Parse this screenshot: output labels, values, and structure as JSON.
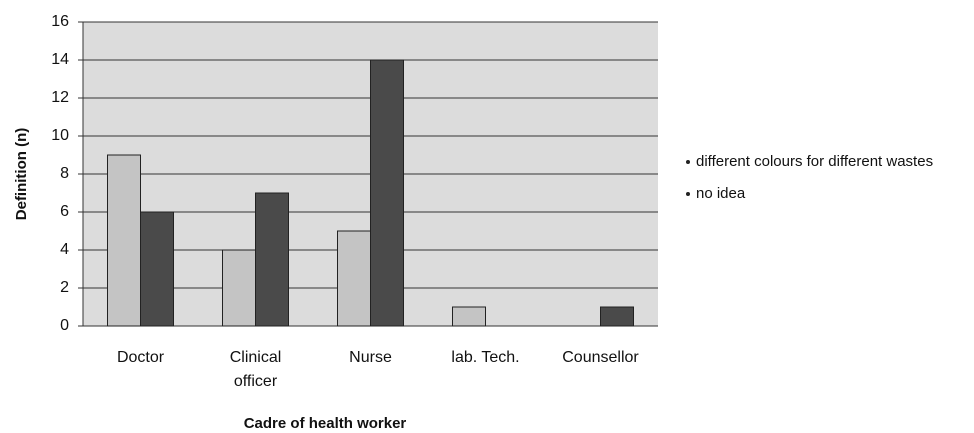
{
  "chart_data": {
    "type": "bar",
    "x_label": "Cadre of health worker",
    "y_label": "Definition (n)",
    "categories": [
      "Doctor",
      "Clinical officer",
      "Nurse",
      "lab. Tech.",
      "Counsellor"
    ],
    "series": [
      {
        "name": "different colours for different wastes",
        "color": "#c4c4c4",
        "values": [
          9,
          4,
          5,
          1,
          0
        ]
      },
      {
        "name": "no idea",
        "color": "#4a4a4a",
        "values": [
          6,
          7,
          14,
          0,
          1
        ]
      }
    ],
    "ylim": [
      0,
      16
    ],
    "yticks": [
      0,
      2,
      4,
      6,
      8,
      10,
      12,
      14,
      16
    ],
    "grid": true,
    "legend": "right"
  }
}
